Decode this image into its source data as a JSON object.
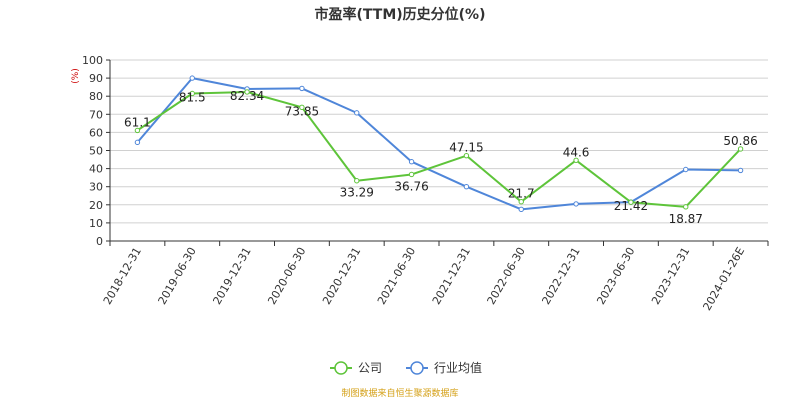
{
  "chart_data": {
    "type": "line",
    "title": "市盈率(TTM)历史分位(%)",
    "ylabel": "(%)",
    "xlabel": "",
    "ylim": [
      0,
      100
    ],
    "yticks": [
      0,
      10,
      20,
      30,
      40,
      50,
      60,
      70,
      80,
      90,
      100
    ],
    "grid": true,
    "legend_position": "bottom-center",
    "categories": [
      "2018-12-31",
      "2019-06-30",
      "2019-12-31",
      "2020-06-30",
      "2020-12-31",
      "2021-06-30",
      "2021-12-31",
      "2022-06-30",
      "2022-12-31",
      "2023-06-30",
      "2023-12-31",
      "2024-01-26E"
    ],
    "series": [
      {
        "name": "公司",
        "color": "#5ec43a",
        "values": [
          61.1,
          81.5,
          82.34,
          73.85,
          33.29,
          36.76,
          47.15,
          21.7,
          44.6,
          21.42,
          18.87,
          50.86
        ],
        "labels": [
          "61.1",
          "81.5",
          "82.34",
          "73.85",
          "33.29",
          "36.76",
          "47.15",
          "21.7",
          "44.6",
          "21.42",
          "18.87",
          "50.86"
        ]
      },
      {
        "name": "行业均值",
        "color": "#4f86d9",
        "values": [
          54.5,
          90.0,
          84.0,
          84.3,
          70.8,
          43.8,
          30.0,
          17.5,
          20.5,
          21.5,
          39.5,
          39.0
        ]
      }
    ]
  },
  "footer": {
    "source": "制图数据来自恒生聚源数据库"
  }
}
